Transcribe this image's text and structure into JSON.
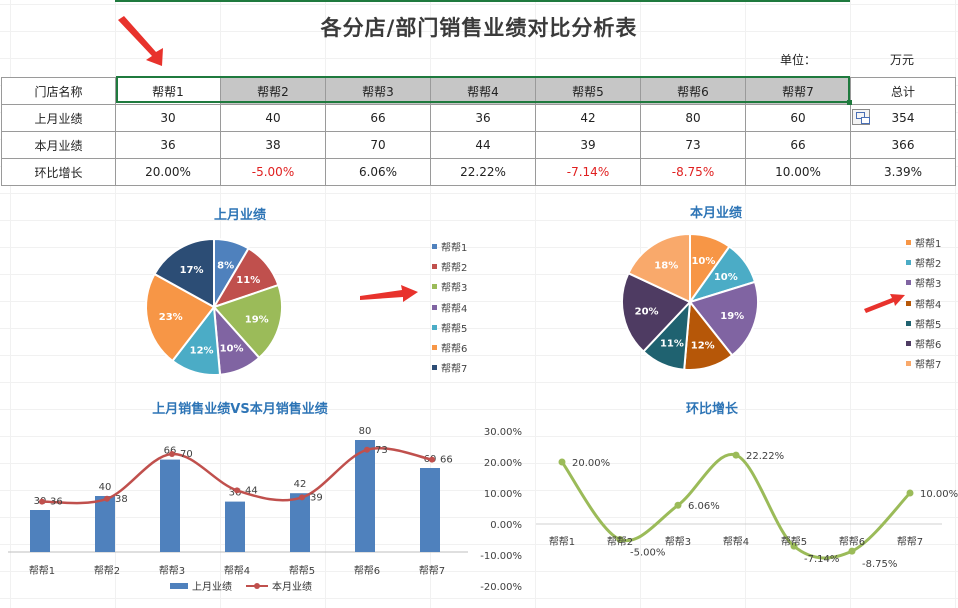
{
  "title": "各分店/部门销售业绩对比分析表",
  "unit": {
    "label": "单位：",
    "value": "万元"
  },
  "table": {
    "header": [
      "门店名称",
      "帮帮1",
      "帮帮2",
      "帮帮3",
      "帮帮4",
      "帮帮5",
      "帮帮6",
      "帮帮7",
      "总计"
    ],
    "rows": [
      {
        "label": "上月业绩",
        "values": [
          "30",
          "40",
          "66",
          "36",
          "42",
          "80",
          "60"
        ],
        "total": "354"
      },
      {
        "label": "本月业绩",
        "values": [
          "36",
          "38",
          "70",
          "44",
          "39",
          "73",
          "66"
        ],
        "total": "366"
      },
      {
        "label": "环比增长",
        "values": [
          "20.00%",
          "-5.00%",
          "6.06%",
          "22.22%",
          "-7.14%",
          "-8.75%",
          "10.00%"
        ],
        "total": "3.39%"
      }
    ]
  },
  "chart_data": [
    {
      "type": "pie",
      "title": "上月业绩",
      "categories": [
        "帮帮1",
        "帮帮2",
        "帮帮3",
        "帮帮4",
        "帮帮5",
        "帮帮6",
        "帮帮7"
      ],
      "values": [
        30,
        40,
        66,
        36,
        42,
        80,
        60
      ],
      "labels": [
        "8%",
        "11%",
        "19%",
        "10%",
        "12%",
        "23%",
        "17%"
      ],
      "colors": [
        "#4f81bd",
        "#c0504d",
        "#9bbb59",
        "#8064a2",
        "#4bacc6",
        "#f79646",
        "#2c4d75"
      ],
      "legend": "right"
    },
    {
      "type": "pie",
      "title": "本月业绩",
      "categories": [
        "帮帮1",
        "帮帮2",
        "帮帮3",
        "帮帮4",
        "帮帮5",
        "帮帮6",
        "帮帮7"
      ],
      "values": [
        36,
        38,
        70,
        44,
        39,
        73,
        66
      ],
      "labels": [
        "10%",
        "10%",
        "19%",
        "12%",
        "11%",
        "20%",
        "18%"
      ],
      "colors": [
        "#f79646",
        "#4bacc6",
        "#8064a2",
        "#b65708",
        "#1f6270",
        "#4e3b62",
        "#f9a96b"
      ],
      "legend": "right"
    },
    {
      "type": "bar",
      "title": "上月销售业绩VS本月销售业绩",
      "categories": [
        "帮帮1",
        "帮帮2",
        "帮帮3",
        "帮帮4",
        "帮帮5",
        "帮帮6",
        "帮帮7"
      ],
      "series": [
        {
          "name": "上月业绩",
          "type": "bar",
          "values": [
            30,
            40,
            66,
            36,
            42,
            80,
            60
          ],
          "color": "#4f81bd"
        },
        {
          "name": "本月业绩",
          "type": "line",
          "values": [
            36,
            38,
            70,
            44,
            39,
            73,
            66
          ],
          "color": "#c0504d"
        }
      ],
      "legend": "bottom"
    },
    {
      "type": "line",
      "title": "环比增长",
      "categories": [
        "帮帮1",
        "帮帮2",
        "帮帮3",
        "帮帮4",
        "帮帮5",
        "帮帮6",
        "帮帮7"
      ],
      "values": [
        0.2,
        -0.05,
        0.0606,
        0.2222,
        -0.0714,
        -0.0875,
        0.1
      ],
      "value_labels": [
        "20.00%",
        "-5.00%",
        "6.06%",
        "22.22%",
        "-7.14%",
        "-8.75%",
        "10.00%"
      ],
      "y_ticks": [
        "30.00%",
        "20.00%",
        "10.00%",
        "0.00%",
        "-10.00%",
        "-20.00%"
      ],
      "ylim": [
        -0.2,
        0.3
      ],
      "color": "#9bbb59"
    }
  ]
}
